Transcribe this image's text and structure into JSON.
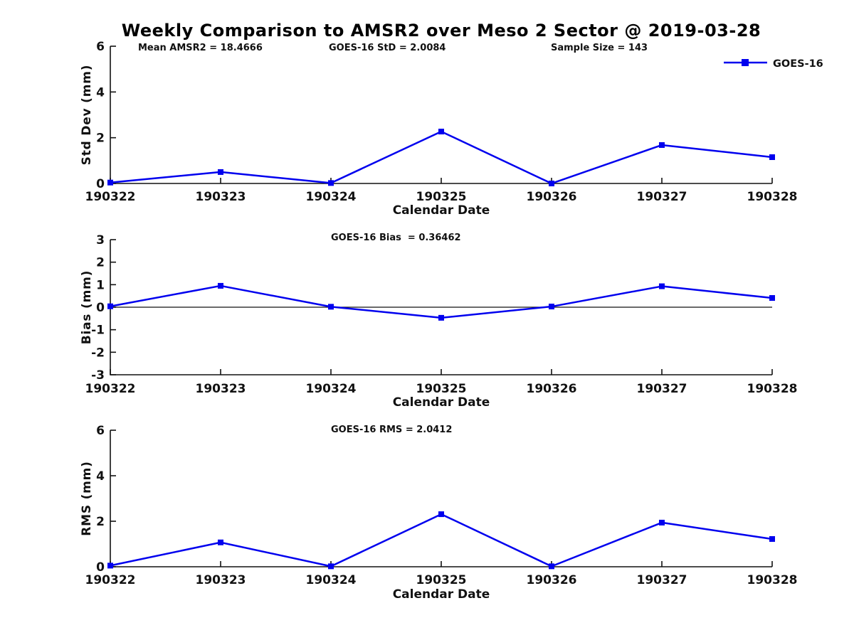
{
  "title": "Weekly Comparison to AMSR2 over Meso 2 Sector @ 2019-03-28",
  "legend": {
    "label": "GOES-16",
    "color": "#0000EE"
  },
  "chart_data": [
    {
      "type": "line",
      "name": "std-dev",
      "ylabel": "Std Dev (mm)",
      "xlabel": "Calendar Date",
      "ylim": [
        0,
        6
      ],
      "yticks": [
        0,
        2,
        4,
        6
      ],
      "categories": [
        "190322",
        "190323",
        "190324",
        "190325",
        "190326",
        "190327",
        "190328"
      ],
      "series": [
        {
          "name": "GOES-16",
          "color": "#0000EE",
          "values": [
            0.04,
            0.5,
            0.02,
            2.27,
            0.0,
            1.68,
            1.15
          ]
        }
      ],
      "annotations": [
        "Mean AMSR2 = 18.4666",
        "GOES-16 StD = 2.0084",
        "Sample Size = 143"
      ],
      "zero_line": false,
      "grid": false,
      "legend_position": "top-right-outside"
    },
    {
      "type": "line",
      "name": "bias",
      "ylabel": "Bias (mm)",
      "xlabel": "Calendar Date",
      "ylim": [
        -3,
        3
      ],
      "yticks": [
        3,
        2,
        1,
        0,
        -1,
        -2,
        -3
      ],
      "categories": [
        "190322",
        "190323",
        "190324",
        "190325",
        "190326",
        "190327",
        "190328"
      ],
      "series": [
        {
          "name": "GOES-16",
          "color": "#0000EE",
          "values": [
            0.04,
            0.95,
            0.02,
            -0.47,
            0.03,
            0.93,
            0.41
          ]
        }
      ],
      "annotations": [
        "GOES-16 Bias  = 0.36462"
      ],
      "zero_line": true,
      "grid": false,
      "legend_position": "none"
    },
    {
      "type": "line",
      "name": "rms",
      "ylabel": "RMS (mm)",
      "xlabel": "Calendar Date",
      "ylim": [
        0,
        6
      ],
      "yticks": [
        0,
        2,
        4,
        6
      ],
      "categories": [
        "190322",
        "190323",
        "190324",
        "190325",
        "190326",
        "190327",
        "190328"
      ],
      "series": [
        {
          "name": "GOES-16",
          "color": "#0000EE",
          "values": [
            0.05,
            1.07,
            0.02,
            2.31,
            0.02,
            1.94,
            1.22
          ]
        }
      ],
      "annotations": [
        "GOES-16 RMS = 2.0412"
      ],
      "zero_line": false,
      "grid": false,
      "legend_position": "none"
    }
  ]
}
